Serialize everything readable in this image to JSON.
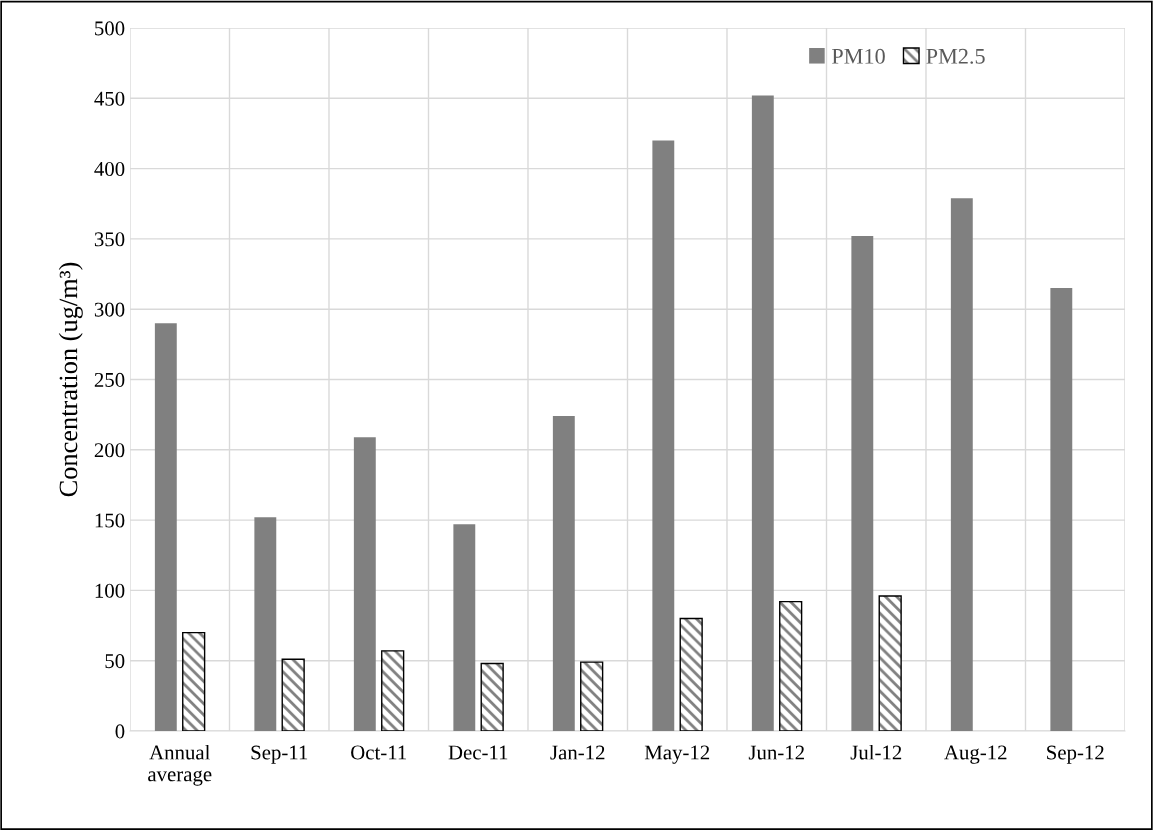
{
  "chart_data": {
    "type": "bar",
    "ylabel": "Concentration (ug/m³)",
    "categories": [
      "Annual average",
      "Sep-11",
      "Oct-11",
      "Dec-11",
      "Jan-12",
      "May-12",
      "Jun-12",
      "Jul-12",
      "Aug-12",
      "Sep-12"
    ],
    "series": [
      {
        "name": "PM10",
        "color": "#808080",
        "values": [
          290,
          152,
          209,
          147,
          224,
          420,
          452,
          352,
          379,
          315
        ]
      },
      {
        "name": "PM2.5",
        "color": "#000000",
        "values": [
          70,
          51,
          57,
          48,
          49,
          80,
          92,
          96,
          null,
          null
        ]
      }
    ],
    "ylim": [
      0,
      500
    ],
    "yticks": [
      0,
      50,
      100,
      150,
      200,
      250,
      300,
      350,
      400,
      450,
      500
    ],
    "grid": true,
    "legend": "top right"
  }
}
